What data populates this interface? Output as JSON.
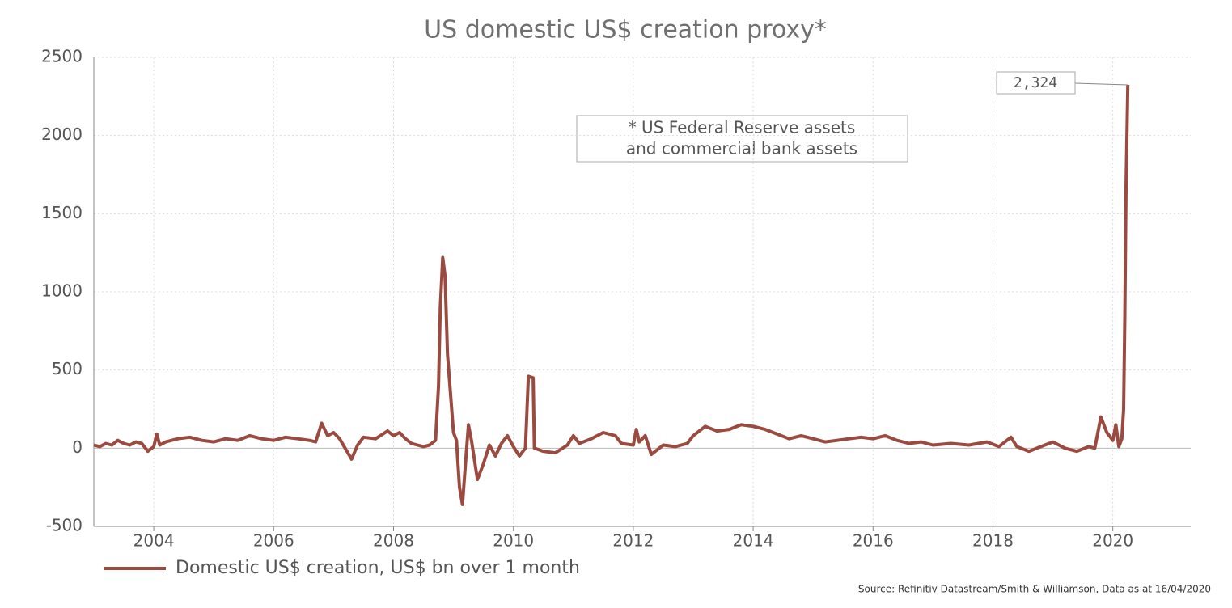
{
  "chart_data": {
    "type": "line",
    "title": "US domestic US$ creation proxy*",
    "note_lines": [
      "* US Federal Reserve assets",
      "and commercial bank assets"
    ],
    "source": "Source: Refinitiv Datastream/Smith & Williamson, Data as at 16/04/2020",
    "last_value_label": "2,324",
    "xlim": [
      2003,
      2021.3
    ],
    "xticks": [
      2004,
      2006,
      2008,
      2010,
      2012,
      2014,
      2016,
      2018,
      2020
    ],
    "ylim": [
      -500,
      2500
    ],
    "yticks": [
      -500,
      0,
      500,
      1000,
      1500,
      2000,
      2500
    ],
    "grid": true,
    "legend": "bottom-left",
    "series": [
      {
        "name": "Domestic US$ creation, US$ bn over 1 month",
        "color": "#9b4a40",
        "x": [
          2003.0,
          2003.1,
          2003.2,
          2003.3,
          2003.4,
          2003.5,
          2003.6,
          2003.7,
          2003.8,
          2003.9,
          2004.0,
          2004.05,
          2004.1,
          2004.2,
          2004.4,
          2004.6,
          2004.8,
          2005.0,
          2005.2,
          2005.4,
          2005.6,
          2005.8,
          2006.0,
          2006.2,
          2006.4,
          2006.6,
          2006.7,
          2006.8,
          2006.9,
          2007.0,
          2007.1,
          2007.3,
          2007.4,
          2007.5,
          2007.7,
          2007.9,
          2008.0,
          2008.1,
          2008.2,
          2008.3,
          2008.4,
          2008.5,
          2008.6,
          2008.7,
          2008.75,
          2008.78,
          2008.82,
          2008.86,
          2008.9,
          2008.95,
          2009.0,
          2009.05,
          2009.1,
          2009.15,
          2009.2,
          2009.25,
          2009.3,
          2009.4,
          2009.5,
          2009.6,
          2009.7,
          2009.8,
          2009.9,
          2010.0,
          2010.1,
          2010.2,
          2010.25,
          2010.33,
          2010.35,
          2010.5,
          2010.7,
          2010.9,
          2011.0,
          2011.1,
          2011.3,
          2011.5,
          2011.7,
          2011.8,
          2012.0,
          2012.05,
          2012.1,
          2012.2,
          2012.3,
          2012.5,
          2012.7,
          2012.9,
          2013.0,
          2013.2,
          2013.4,
          2013.6,
          2013.8,
          2014.0,
          2014.2,
          2014.4,
          2014.6,
          2014.8,
          2015.0,
          2015.2,
          2015.4,
          2015.6,
          2015.8,
          2016.0,
          2016.2,
          2016.4,
          2016.6,
          2016.8,
          2017.0,
          2017.3,
          2017.6,
          2017.9,
          2018.1,
          2018.3,
          2018.4,
          2018.6,
          2018.8,
          2019.0,
          2019.2,
          2019.4,
          2019.6,
          2019.7,
          2019.8,
          2019.9,
          2020.0,
          2020.05,
          2020.1,
          2020.15,
          2020.18,
          2020.2,
          2020.22,
          2020.25
        ],
        "values": [
          20,
          10,
          30,
          20,
          50,
          30,
          20,
          40,
          30,
          -20,
          10,
          90,
          20,
          40,
          60,
          70,
          50,
          40,
          60,
          50,
          80,
          60,
          50,
          70,
          60,
          50,
          40,
          160,
          80,
          100,
          60,
          -70,
          20,
          70,
          60,
          110,
          80,
          100,
          60,
          30,
          20,
          10,
          20,
          50,
          400,
          900,
          1220,
          1100,
          600,
          350,
          100,
          50,
          -250,
          -360,
          -100,
          150,
          50,
          -200,
          -100,
          20,
          -50,
          30,
          80,
          10,
          -50,
          0,
          460,
          450,
          0,
          -20,
          -30,
          20,
          80,
          30,
          60,
          100,
          80,
          30,
          20,
          120,
          40,
          80,
          -40,
          20,
          10,
          30,
          80,
          140,
          110,
          120,
          150,
          140,
          120,
          90,
          60,
          80,
          60,
          40,
          50,
          60,
          70,
          60,
          80,
          50,
          30,
          40,
          20,
          30,
          20,
          40,
          10,
          70,
          10,
          -20,
          10,
          40,
          0,
          -20,
          10,
          0,
          200,
          100,
          50,
          150,
          10,
          60,
          250,
          830,
          1670,
          2324
        ]
      }
    ]
  }
}
